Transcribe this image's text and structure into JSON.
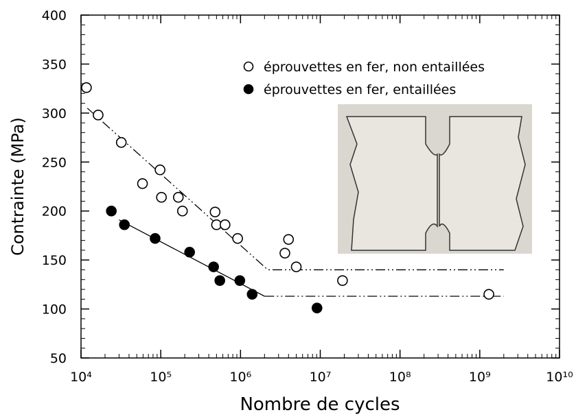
{
  "chart_data": {
    "type": "scatter",
    "x_label": "Nombre de cycles",
    "y_label": "Contrainte (MPa)",
    "xlog": true,
    "xlim": [
      10000,
      10000000000
    ],
    "ylim": [
      50,
      400
    ],
    "xticks": [
      {
        "value": 10000,
        "label": "10⁴"
      },
      {
        "value": 100000,
        "label": "10⁵"
      },
      {
        "value": 1000000,
        "label": "10⁶"
      },
      {
        "value": 10000000,
        "label": "10⁷"
      },
      {
        "value": 100000000,
        "label": "10⁸"
      },
      {
        "value": 1000000000,
        "label": "10⁹"
      },
      {
        "value": 10000000000,
        "label": "10¹⁰"
      }
    ],
    "yticks": [
      50,
      100,
      150,
      200,
      250,
      300,
      350,
      400
    ],
    "xminorticks": [
      20000,
      30000,
      40000,
      50000,
      60000,
      70000,
      80000,
      90000,
      200000,
      300000,
      400000,
      500000,
      600000,
      700000,
      800000,
      900000,
      2000000,
      3000000,
      4000000,
      5000000,
      6000000,
      7000000,
      8000000,
      9000000,
      20000000,
      30000000,
      40000000,
      50000000,
      60000000,
      70000000,
      80000000,
      90000000,
      200000000,
      300000000,
      400000000,
      500000000,
      600000000,
      700000000,
      800000000,
      900000000,
      2000000000,
      3000000000,
      4000000000,
      5000000000,
      6000000000,
      7000000000,
      8000000000,
      9000000000
    ],
    "yminorticks": [
      60,
      70,
      80,
      90,
      110,
      120,
      130,
      140,
      160,
      170,
      180,
      190,
      210,
      220,
      230,
      240,
      260,
      270,
      280,
      290,
      310,
      320,
      330,
      340,
      360,
      370,
      380,
      390
    ],
    "series": [
      {
        "name": "éprouvettes en fer, non entaillées",
        "marker": "open",
        "color": "#000000",
        "x": [
          11700,
          16400,
          32000,
          59000,
          98000,
          102000,
          166000,
          187000,
          480000,
          500000,
          640000,
          920000,
          3600000,
          4000000,
          5000000,
          19000000,
          1300000000
        ],
        "values": [
          326,
          298,
          270,
          228,
          242,
          214,
          214,
          200,
          199,
          186,
          186,
          172,
          157,
          171,
          143,
          129,
          115
        ]
      },
      {
        "name": "éprouvettes en fer, entaillées",
        "marker": "filled",
        "color": "#000000",
        "x": [
          24000,
          35000,
          85000,
          230000,
          460000,
          550000,
          980000,
          1400000,
          9100000
        ],
        "values": [
          200,
          186,
          172,
          158,
          143,
          129,
          129,
          115,
          101
        ]
      }
    ],
    "fit_lines": [
      {
        "style": "dash-dot-dot",
        "x": [
          12000,
          2200000,
          2000000000
        ],
        "values": [
          305,
          140,
          140
        ]
      },
      {
        "style": "solid",
        "x": [
          30000,
          2000000
        ],
        "values": [
          191,
          113
        ]
      },
      {
        "style": "dash-dot-dot",
        "x": [
          2000000,
          2000000000
        ],
        "values": [
          113,
          113
        ]
      }
    ],
    "legend_position": "upper-right"
  }
}
